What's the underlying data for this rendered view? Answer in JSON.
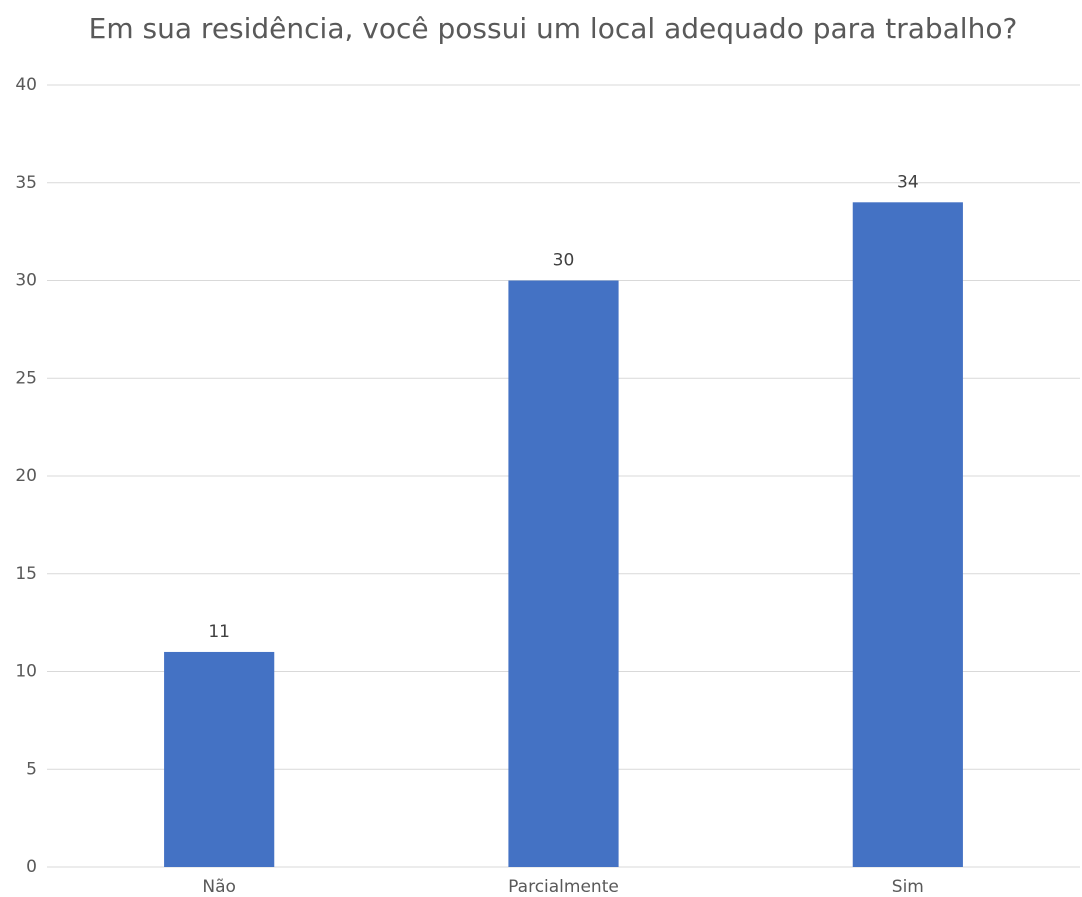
{
  "chart_data": {
    "type": "bar",
    "title": "Em sua residência, você possui um local adequado para trabalho?",
    "categories": [
      "Não",
      "Parcialmente",
      "Sim"
    ],
    "values": [
      11,
      30,
      34
    ],
    "color": "#4472c4",
    "ylim": [
      0,
      40
    ],
    "yticks": [
      0,
      5,
      10,
      15,
      20,
      25,
      30,
      35,
      40
    ],
    "grid": true
  }
}
